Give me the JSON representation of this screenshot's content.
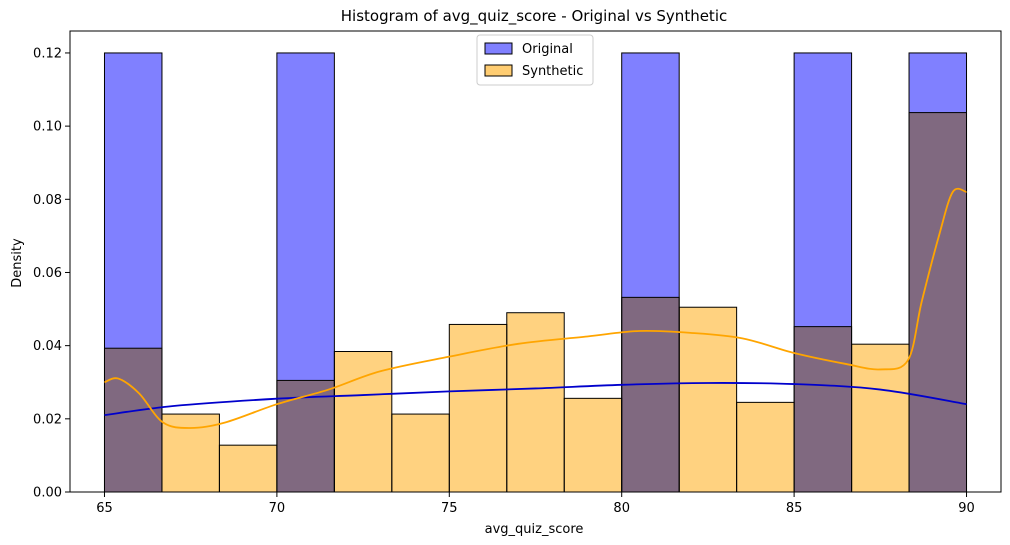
{
  "chart_data": {
    "type": "bar",
    "title": "Histogram of avg_quiz_score - Original vs Synthetic",
    "xlabel": "avg_quiz_score",
    "ylabel": "Density",
    "xlim": [
      64.0,
      91.0
    ],
    "ylim": [
      0.0,
      0.126
    ],
    "bin_edges": [
      65.0,
      66.667,
      68.333,
      70.0,
      71.667,
      73.333,
      75.0,
      76.667,
      78.333,
      80.0,
      81.667,
      83.333,
      85.0,
      86.667,
      88.333,
      90.0
    ],
    "x_ticks": [
      65,
      70,
      75,
      80,
      85,
      90
    ],
    "x_tick_labels": [
      "65",
      "70",
      "75",
      "80",
      "85",
      "90"
    ],
    "y_ticks": [
      0.0,
      0.02,
      0.04,
      0.06,
      0.08,
      0.1,
      0.12
    ],
    "y_tick_labels": [
      "0.00",
      "0.02",
      "0.04",
      "0.06",
      "0.08",
      "0.10",
      "0.12"
    ],
    "legend_position": "top-center",
    "series": [
      {
        "name": "Original",
        "color": "#8080ff",
        "kde_color": "#0000cc",
        "values": [
          0.12,
          0.0,
          0.0,
          0.12,
          0.0,
          0.0,
          0.0,
          0.0,
          0.0,
          0.12,
          0.0,
          0.0,
          0.12,
          0.0,
          0.12
        ],
        "kde": {
          "x": [
            65,
            67,
            70,
            72.5,
            75,
            77.5,
            80,
            82.5,
            85,
            87.5,
            90
          ],
          "y": [
            0.021,
            0.0235,
            0.0255,
            0.0265,
            0.0275,
            0.0283,
            0.0293,
            0.0298,
            0.0295,
            0.028,
            0.024
          ]
        }
      },
      {
        "name": "Synthetic",
        "color": "#ffcd72",
        "kde_color": "#ffa500",
        "values": [
          0.0393,
          0.0213,
          0.0128,
          0.0305,
          0.0384,
          0.0213,
          0.0458,
          0.049,
          0.0256,
          0.0532,
          0.0505,
          0.0245,
          0.0452,
          0.0404,
          0.1037
        ],
        "kde": {
          "x": [
            65,
            65.4,
            66,
            66.7,
            67.5,
            68.5,
            70,
            71.5,
            73,
            75,
            77,
            79,
            80.5,
            82,
            83.5,
            85,
            86.5,
            87.5,
            88.3,
            88.7,
            89.2,
            89.6,
            90
          ],
          "y": [
            0.03,
            0.031,
            0.027,
            0.019,
            0.0175,
            0.019,
            0.024,
            0.028,
            0.033,
            0.037,
            0.0405,
            0.0425,
            0.044,
            0.0435,
            0.042,
            0.038,
            0.035,
            0.0335,
            0.036,
            0.052,
            0.07,
            0.082,
            0.082
          ]
        }
      }
    ]
  }
}
